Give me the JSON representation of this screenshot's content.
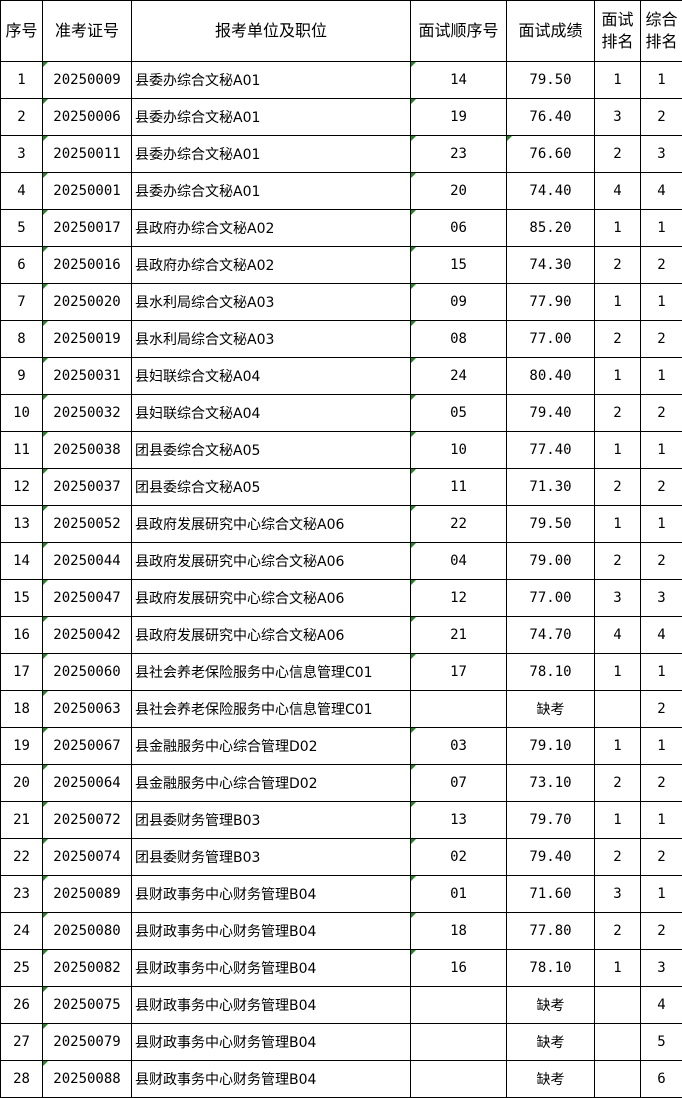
{
  "headers": [
    "序号",
    "准考证号",
    "报考单位及职位",
    "面试顺序号",
    "面试成绩",
    "面试\n排名",
    "综合\n排名"
  ],
  "rows": [
    [
      "1",
      "20250009",
      "县委办综合文秘A01",
      "14",
      "79.50",
      "1",
      "1"
    ],
    [
      "2",
      "20250006",
      "县委办综合文秘A01",
      "19",
      "76.40",
      "3",
      "2"
    ],
    [
      "3",
      "20250011",
      "县委办综合文秘A01",
      "23",
      "76.60",
      "2",
      "3"
    ],
    [
      "4",
      "20250001",
      "县委办综合文秘A01",
      "20",
      "74.40",
      "4",
      "4"
    ],
    [
      "5",
      "20250017",
      "县政府办综合文秘A02",
      "06",
      "85.20",
      "1",
      "1"
    ],
    [
      "6",
      "20250016",
      "县政府办综合文秘A02",
      "15",
      "74.30",
      "2",
      "2"
    ],
    [
      "7",
      "20250020",
      "县水利局综合文秘A03",
      "09",
      "77.90",
      "1",
      "1"
    ],
    [
      "8",
      "20250019",
      "县水利局综合文秘A03",
      "08",
      "77.00",
      "2",
      "2"
    ],
    [
      "9",
      "20250031",
      "县妇联综合文秘A04",
      "24",
      "80.40",
      "1",
      "1"
    ],
    [
      "10",
      "20250032",
      "县妇联综合文秘A04",
      "05",
      "79.40",
      "2",
      "2"
    ],
    [
      "11",
      "20250038",
      "团县委综合文秘A05",
      "10",
      "77.40",
      "1",
      "1"
    ],
    [
      "12",
      "20250037",
      "团县委综合文秘A05",
      "11",
      "71.30",
      "2",
      "2"
    ],
    [
      "13",
      "20250052",
      "县政府发展研究中心综合文秘A06",
      "22",
      "79.50",
      "1",
      "1"
    ],
    [
      "14",
      "20250044",
      "县政府发展研究中心综合文秘A06",
      "04",
      "79.00",
      "2",
      "2"
    ],
    [
      "15",
      "20250047",
      "县政府发展研究中心综合文秘A06",
      "12",
      "77.00",
      "3",
      "3"
    ],
    [
      "16",
      "20250042",
      "县政府发展研究中心综合文秘A06",
      "21",
      "74.70",
      "4",
      "4"
    ],
    [
      "17",
      "20250060",
      "县社会养老保险服务中心信息管理C01",
      "17",
      "78.10",
      "1",
      "1"
    ],
    [
      "18",
      "20250063",
      "县社会养老保险服务中心信息管理C01",
      "",
      "缺考",
      "",
      "2"
    ],
    [
      "19",
      "20250067",
      "县金融服务中心综合管理D02",
      "03",
      "79.10",
      "1",
      "1"
    ],
    [
      "20",
      "20250064",
      "县金融服务中心综合管理D02",
      "07",
      "73.10",
      "2",
      "2"
    ],
    [
      "21",
      "20250072",
      "团县委财务管理B03",
      "13",
      "79.70",
      "1",
      "1"
    ],
    [
      "22",
      "20250074",
      "团县委财务管理B03",
      "02",
      "79.40",
      "2",
      "2"
    ],
    [
      "23",
      "20250089",
      "县财政事务中心财务管理B04",
      "01",
      "71.60",
      "3",
      "1"
    ],
    [
      "24",
      "20250080",
      "县财政事务中心财务管理B04",
      "18",
      "77.80",
      "2",
      "2"
    ],
    [
      "25",
      "20250082",
      "县财政事务中心财务管理B04",
      "16",
      "78.10",
      "1",
      "3"
    ],
    [
      "26",
      "20250075",
      "县财政事务中心财务管理B04",
      "",
      "缺考",
      "",
      "4"
    ],
    [
      "27",
      "20250079",
      "县财政事务中心财务管理B04",
      "",
      "缺考",
      "",
      "5"
    ],
    [
      "28",
      "20250088",
      "县财政事务中心财务管理B04",
      "",
      "缺考",
      "",
      "6"
    ]
  ],
  "colors": {
    "border": "#000000",
    "comment_marker": "#1a8a1a"
  }
}
